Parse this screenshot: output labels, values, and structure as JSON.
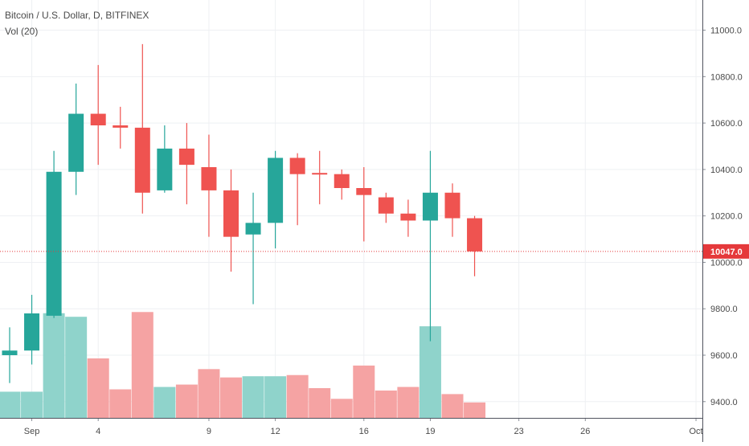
{
  "chart_data": {
    "type": "candlestick",
    "title": "Bitcoin / U.S. Dollar, D, BITFINEX",
    "volume_label": "Vol (20)",
    "y_ticks": [
      "9400.0",
      "9600.0",
      "9800.0",
      "10000.0",
      "10200.0",
      "10400.0",
      "10600.0",
      "10800.0",
      "11000.0"
    ],
    "x_ticks": [
      {
        "day": 1,
        "label": "Sep"
      },
      {
        "day": 4,
        "label": "4"
      },
      {
        "day": 9,
        "label": "9"
      },
      {
        "day": 12,
        "label": "12"
      },
      {
        "day": 16,
        "label": "16"
      },
      {
        "day": 19,
        "label": "19"
      },
      {
        "day": 23,
        "label": "23"
      },
      {
        "day": 26,
        "label": "26"
      },
      {
        "day": 31,
        "label": "Oct"
      }
    ],
    "ylim": [
      9330,
      11130
    ],
    "current_price": 10047.0,
    "current_price_label": "10047.0",
    "colors": {
      "up": "#26a69a",
      "down": "#ef5350",
      "vol_up": "#8fd3cb",
      "vol_down": "#f5a3a3",
      "grid": "#eef0f3",
      "axis_text": "#4a4a4a",
      "price_line": "#e5393b"
    },
    "candles": [
      {
        "day": 0,
        "open": 9600,
        "high": 9720,
        "low": 9480,
        "close": 9620
      },
      {
        "day": 1,
        "open": 9620,
        "high": 9860,
        "low": 9560,
        "close": 9780
      },
      {
        "day": 2,
        "open": 9770,
        "high": 10480,
        "low": 9760,
        "close": 10390
      },
      {
        "day": 3,
        "open": 10390,
        "high": 10770,
        "low": 10290,
        "close": 10640
      },
      {
        "day": 4,
        "open": 10640,
        "high": 10850,
        "low": 10420,
        "close": 10590
      },
      {
        "day": 5,
        "open": 10590,
        "high": 10670,
        "low": 10490,
        "close": 10580
      },
      {
        "day": 6,
        "open": 10580,
        "high": 10940,
        "low": 10210,
        "close": 10300
      },
      {
        "day": 7,
        "open": 10310,
        "high": 10590,
        "low": 10300,
        "close": 10490
      },
      {
        "day": 8,
        "open": 10490,
        "high": 10600,
        "low": 10250,
        "close": 10420
      },
      {
        "day": 9,
        "open": 10410,
        "high": 10550,
        "low": 10110,
        "close": 10310
      },
      {
        "day": 10,
        "open": 10310,
        "high": 10400,
        "low": 9960,
        "close": 10110
      },
      {
        "day": 11,
        "open": 10120,
        "high": 10300,
        "low": 9820,
        "close": 10170
      },
      {
        "day": 12,
        "open": 10170,
        "high": 10480,
        "low": 10060,
        "close": 10450
      },
      {
        "day": 13,
        "open": 10450,
        "high": 10470,
        "low": 10160,
        "close": 10380
      },
      {
        "day": 14,
        "open": 10385,
        "high": 10480,
        "low": 10250,
        "close": 10380
      },
      {
        "day": 15,
        "open": 10380,
        "high": 10400,
        "low": 10270,
        "close": 10320
      },
      {
        "day": 16,
        "open": 10320,
        "high": 10410,
        "low": 10090,
        "close": 10290
      },
      {
        "day": 17,
        "open": 10280,
        "high": 10300,
        "low": 10170,
        "close": 10210
      },
      {
        "day": 18,
        "open": 10210,
        "high": 10270,
        "low": 10110,
        "close": 10180
      },
      {
        "day": 19,
        "open": 10180,
        "high": 10480,
        "low": 9660,
        "close": 10300
      },
      {
        "day": 20,
        "open": 10300,
        "high": 10340,
        "low": 10110,
        "close": 10190
      },
      {
        "day": 21,
        "open": 10190,
        "high": 10200,
        "low": 9940,
        "close": 10047
      }
    ],
    "volume": [
      {
        "day": 0,
        "rel": 0.22,
        "dir": "up"
      },
      {
        "day": 1,
        "rel": 0.22,
        "dir": "up"
      },
      {
        "day": 2,
        "rel": 0.88,
        "dir": "up"
      },
      {
        "day": 3,
        "rel": 0.85,
        "dir": "up"
      },
      {
        "day": 4,
        "rel": 0.5,
        "dir": "down"
      },
      {
        "day": 5,
        "rel": 0.24,
        "dir": "down"
      },
      {
        "day": 6,
        "rel": 0.89,
        "dir": "down"
      },
      {
        "day": 7,
        "rel": 0.26,
        "dir": "up"
      },
      {
        "day": 8,
        "rel": 0.28,
        "dir": "down"
      },
      {
        "day": 9,
        "rel": 0.41,
        "dir": "down"
      },
      {
        "day": 10,
        "rel": 0.34,
        "dir": "down"
      },
      {
        "day": 11,
        "rel": 0.35,
        "dir": "up"
      },
      {
        "day": 12,
        "rel": 0.35,
        "dir": "up"
      },
      {
        "day": 13,
        "rel": 0.36,
        "dir": "down"
      },
      {
        "day": 14,
        "rel": 0.25,
        "dir": "down"
      },
      {
        "day": 15,
        "rel": 0.16,
        "dir": "down"
      },
      {
        "day": 16,
        "rel": 0.44,
        "dir": "down"
      },
      {
        "day": 17,
        "rel": 0.23,
        "dir": "down"
      },
      {
        "day": 18,
        "rel": 0.26,
        "dir": "down"
      },
      {
        "day": 19,
        "rel": 0.77,
        "dir": "up"
      },
      {
        "day": 20,
        "rel": 0.2,
        "dir": "down"
      },
      {
        "day": 21,
        "rel": 0.13,
        "dir": "down"
      }
    ]
  }
}
